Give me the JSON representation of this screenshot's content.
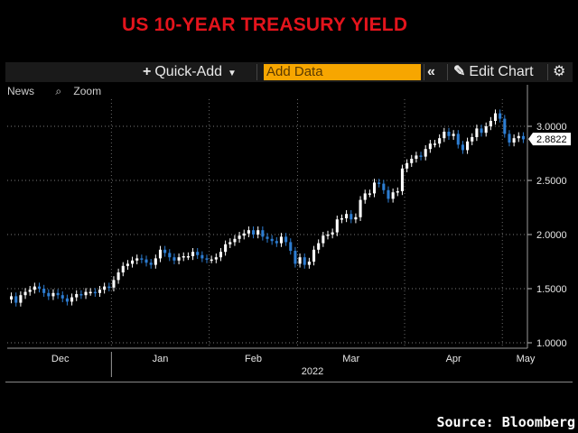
{
  "title": "US 10-YEAR TREASURY YIELD",
  "toolbar": {
    "quick_add_label": "Quick-Add",
    "add_data_placeholder": "Add Data",
    "edit_chart_label": "Edit Chart"
  },
  "chart_tools": {
    "news_label": "News",
    "zoom_label": "Zoom"
  },
  "source": "Source: Bloomberg",
  "colors": {
    "up": "#ffffff",
    "down": "#2d7dd2",
    "title": "#e3141c",
    "accent": "#f7a600"
  },
  "chart_data": {
    "type": "candlestick",
    "title": "US 10-YEAR TREASURY YIELD",
    "ylim": [
      0.95,
      3.25
    ],
    "y_ticks": [
      "1.0000",
      "1.5000",
      "2.0000",
      "2.5000",
      "3.0000"
    ],
    "y_tick_values": [
      1.0,
      1.5,
      2.0,
      2.5,
      3.0
    ],
    "month_labels": [
      "Dec",
      "Jan",
      "Feb",
      "Mar",
      "Apr",
      "May"
    ],
    "year_label": "2022",
    "last_value": "2.8822",
    "grid": true,
    "closes": [
      1.43,
      1.37,
      1.44,
      1.47,
      1.49,
      1.52,
      1.5,
      1.46,
      1.43,
      1.46,
      1.44,
      1.41,
      1.38,
      1.42,
      1.45,
      1.44,
      1.47,
      1.47,
      1.46,
      1.49,
      1.52,
      1.51,
      1.58,
      1.65,
      1.71,
      1.73,
      1.76,
      1.78,
      1.77,
      1.74,
      1.72,
      1.78,
      1.86,
      1.83,
      1.79,
      1.76,
      1.79,
      1.8,
      1.8,
      1.84,
      1.81,
      1.78,
      1.77,
      1.77,
      1.79,
      1.84,
      1.91,
      1.93,
      1.96,
      1.99,
      2.01,
      2.04,
      2.0,
      2.04,
      1.98,
      1.96,
      1.94,
      1.92,
      1.98,
      1.93,
      1.85,
      1.73,
      1.79,
      1.72,
      1.75,
      1.86,
      1.92,
      1.99,
      2.0,
      2.02,
      2.14,
      2.15,
      2.19,
      2.14,
      2.16,
      2.32,
      2.38,
      2.38,
      2.48,
      2.47,
      2.41,
      2.33,
      2.39,
      2.4,
      2.61,
      2.66,
      2.7,
      2.73,
      2.72,
      2.79,
      2.84,
      2.84,
      2.89,
      2.95,
      2.91,
      2.93,
      2.83,
      2.78,
      2.86,
      2.9,
      2.98,
      2.94,
      3.0,
      3.05,
      3.12,
      3.07,
      2.93,
      2.85,
      2.89,
      2.91,
      2.88
    ]
  }
}
